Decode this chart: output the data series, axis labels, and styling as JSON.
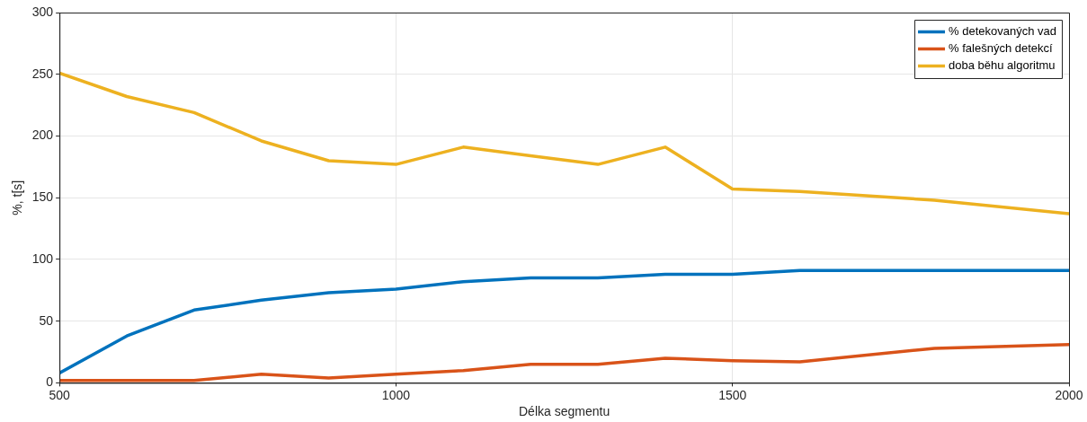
{
  "chart_data": {
    "type": "line",
    "xlabel": "Délka segmentu",
    "ylabel": "%, t[s]",
    "x": [
      500,
      600,
      700,
      800,
      900,
      1000,
      1100,
      1200,
      1300,
      1400,
      1500,
      1600,
      1800,
      2000
    ],
    "series": [
      {
        "name": "% detekovaných vad",
        "color": "#0072bd",
        "values": [
          8,
          38,
          59,
          67,
          73,
          76,
          82,
          85,
          85,
          88,
          88,
          91,
          91,
          91
        ]
      },
      {
        "name": "% falešných detekcí",
        "color": "#d95319",
        "values": [
          2,
          2,
          2,
          7,
          4,
          7,
          10,
          15,
          15,
          20,
          18,
          17,
          28,
          31
        ]
      },
      {
        "name": "doba běhu algoritmu",
        "color": "#edb120",
        "values": [
          251,
          232,
          219,
          196,
          180,
          177,
          191,
          184,
          177,
          191,
          157,
          155,
          148,
          137
        ]
      }
    ],
    "xlim": [
      500,
      2000
    ],
    "xticks": [
      500,
      1000,
      1500,
      2000
    ],
    "ylim": [
      0,
      300
    ],
    "yticks": [
      0,
      50,
      100,
      150,
      200,
      250,
      300
    ],
    "grid": true,
    "legend": "top right",
    "marker": "none",
    "line_style": "solid"
  }
}
